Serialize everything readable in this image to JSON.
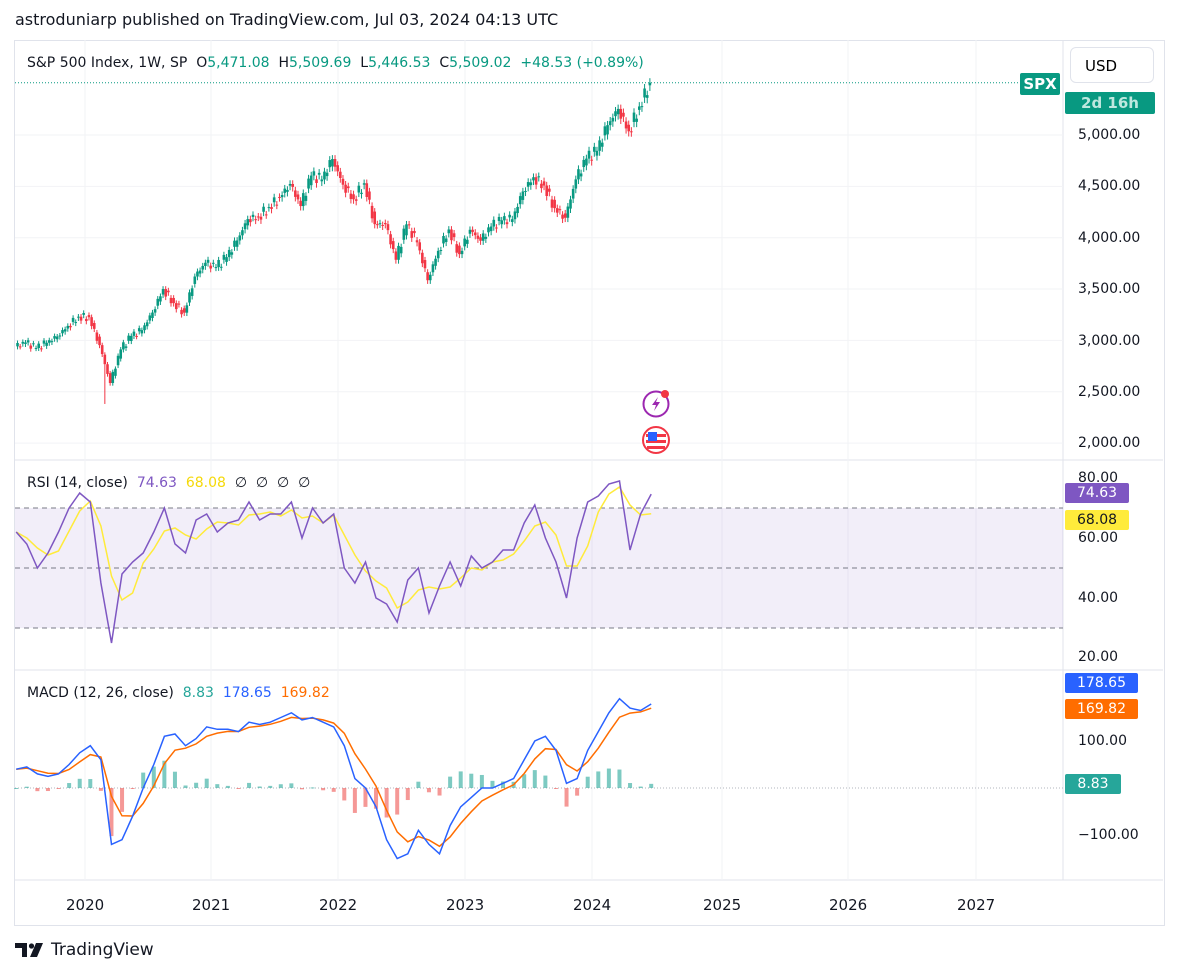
{
  "publisher_line": "astroduniarp published on TradingView.com, Jul 03, 2024 04:13 UTC",
  "header": {
    "symbol_desc": "S&P 500 Index, 1W, SP",
    "open_label": "O",
    "open": "5,471.08",
    "high_label": "H",
    "high": "5,509.69",
    "low_label": "L",
    "low": "5,446.53",
    "close_label": "C",
    "close": "5,509.02",
    "change": "+48.53 (+0.89%)"
  },
  "currency_button": "USD",
  "symbol_tag": "SPX",
  "countdown": "2d 16h",
  "price_axis": [
    "5,000.00",
    "4,500.00",
    "4,000.00",
    "3,500.00",
    "3,000.00",
    "2,500.00",
    "2,000.00"
  ],
  "rsi": {
    "label": "RSI (14, close)",
    "value": "74.63",
    "ma_value": "68.08",
    "extras": [
      "∅",
      "∅",
      "∅",
      "∅"
    ],
    "axis": [
      "80.00",
      "60.00",
      "40.00",
      "20.00"
    ]
  },
  "macd": {
    "label": "MACD (12, 26, close)",
    "hist_value": "8.83",
    "macd_value": "178.65",
    "signal_value": "169.82",
    "axis": [
      "100.00",
      "−100.00"
    ]
  },
  "time_axis": [
    "2020",
    "2021",
    "2022",
    "2023",
    "2024",
    "2025",
    "2026",
    "2027"
  ],
  "brand": "TradingView",
  "colors": {
    "up": "#089981",
    "down": "#f23645",
    "rsi": "#7e57c2",
    "rsi_ma": "#ffeb3b",
    "macd": "#2962ff",
    "signal": "#ff6d00"
  },
  "chart_data": {
    "type": "candlestick",
    "interval_shown": "1W",
    "start": "2019-06",
    "step": "month (approximate)",
    "close": [
      2942,
      2980,
      2926,
      2977,
      3038,
      3141,
      3231,
      3226,
      2954,
      2585,
      2912,
      3044,
      3100,
      3271,
      3500,
      3363,
      3270,
      3622,
      3756,
      3714,
      3811,
      3973,
      4181,
      4204,
      4298,
      4395,
      4523,
      4308,
      4605,
      4567,
      4766,
      4516,
      4374,
      4530,
      4132,
      4132,
      3785,
      4130,
      3955,
      3586,
      3872,
      4080,
      3840,
      4077,
      3970,
      4109,
      4169,
      4180,
      4450,
      4589,
      4508,
      4288,
      4194,
      4568,
      4770,
      4846,
      5096,
      5254,
      5036,
      5278,
      5509
    ],
    "price_range": [
      2000,
      5509
    ],
    "rsi": [
      62,
      58,
      50,
      55,
      62,
      70,
      75,
      72,
      45,
      25,
      48,
      52,
      55,
      62,
      70,
      58,
      55,
      66,
      68,
      62,
      65,
      66,
      72,
      66,
      68,
      68,
      72,
      60,
      70,
      65,
      68,
      50,
      45,
      52,
      40,
      38,
      32,
      46,
      50,
      35,
      44,
      52,
      44,
      54,
      50,
      52,
      56,
      56,
      65,
      71,
      60,
      52,
      40,
      60,
      72,
      74,
      78,
      79,
      56,
      68,
      74.63
    ],
    "rsi_bands": [
      70,
      50,
      30
    ],
    "macd": [
      40,
      45,
      30,
      25,
      30,
      50,
      75,
      90,
      60,
      -120,
      -110,
      -60,
      0,
      50,
      110,
      115,
      90,
      105,
      130,
      125,
      125,
      120,
      140,
      135,
      140,
      150,
      160,
      145,
      150,
      140,
      130,
      90,
      20,
      0,
      -40,
      -110,
      -150,
      -140,
      -90,
      -120,
      -140,
      -80,
      -40,
      -20,
      0,
      0,
      10,
      20,
      60,
      100,
      110,
      80,
      10,
      20,
      80,
      120,
      160,
      190,
      170,
      165,
      178.65
    ]
  }
}
